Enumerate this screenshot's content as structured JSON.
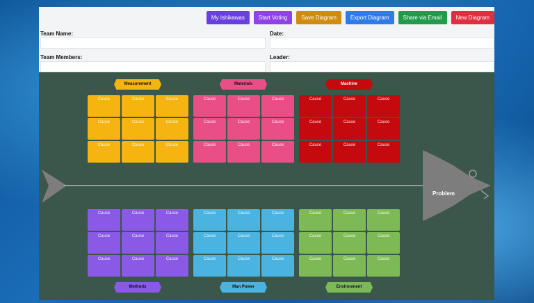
{
  "toolbar": {
    "buttons": [
      {
        "label": "My Ishikawas",
        "color": "#6a3fe0"
      },
      {
        "label": "Start Voting",
        "color": "#8e43e6"
      },
      {
        "label": "Save Diagram",
        "color": "#d08c0e"
      },
      {
        "label": "Export Diagram",
        "color": "#2e7bea"
      },
      {
        "label": "Share via Email",
        "color": "#219a4c"
      },
      {
        "label": "New Diagram",
        "color": "#e02f3e"
      }
    ]
  },
  "form": {
    "team_name_label": "Team Name:",
    "date_label": "Date:",
    "team_members_label": "Team Members:",
    "leader_label": "Leader:"
  },
  "categories": {
    "measurement": {
      "label": "Measurement",
      "color": "#f5b40f",
      "text_color": "#111111"
    },
    "materials": {
      "label": "Materials",
      "color": "#e94f86",
      "text_color": "#111111"
    },
    "machine": {
      "label": "Machine",
      "color": "#c40a0e",
      "text_color": "#ffffff"
    },
    "methods": {
      "label": "Methods",
      "color": "#8a5ae6",
      "text_color": "#111111"
    },
    "man_power": {
      "label": "Man Power",
      "color": "#4ab3e0",
      "text_color": "#111111"
    },
    "environment": {
      "label": "Environment",
      "color": "#7dba56",
      "text_color": "#111111"
    }
  },
  "cause_label": "Cause",
  "problem_label": "Problem",
  "colors": {
    "canvas": "#3b564b",
    "fish": "#7d7d7d"
  }
}
